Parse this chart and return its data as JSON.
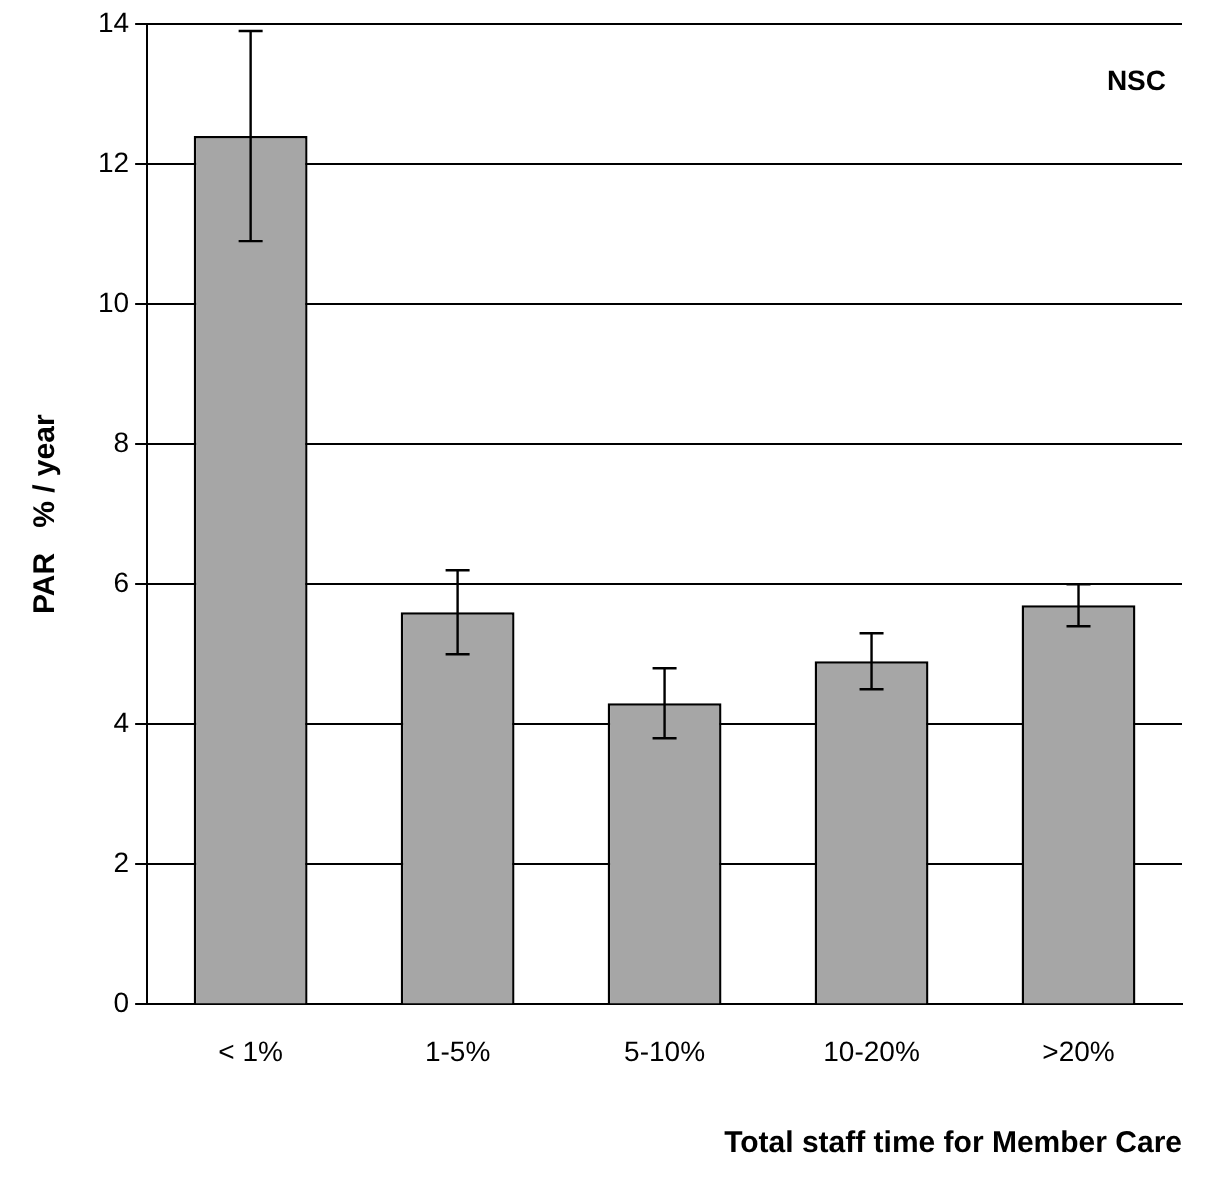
{
  "chart_data": {
    "type": "bar",
    "xlabel": "Total staff time for Member Care",
    "ylabel": "PAR   % / year",
    "categories": [
      "< 1%",
      "1-5%",
      "5-10%",
      "10-20%",
      ">20%"
    ],
    "series": [
      {
        "color": "#a6a6a6",
        "values": [
          12.4,
          5.6,
          4.3,
          4.9,
          5.7
        ],
        "errors": [
          1.5,
          0.6,
          0.5,
          0.4,
          0.3
        ]
      }
    ],
    "ylim": [
      0,
      14
    ],
    "yticks": [
      0,
      2,
      4,
      6,
      8,
      10,
      12,
      14
    ],
    "grid": "y",
    "legend": false,
    "annotations": [
      "NSC"
    ]
  }
}
